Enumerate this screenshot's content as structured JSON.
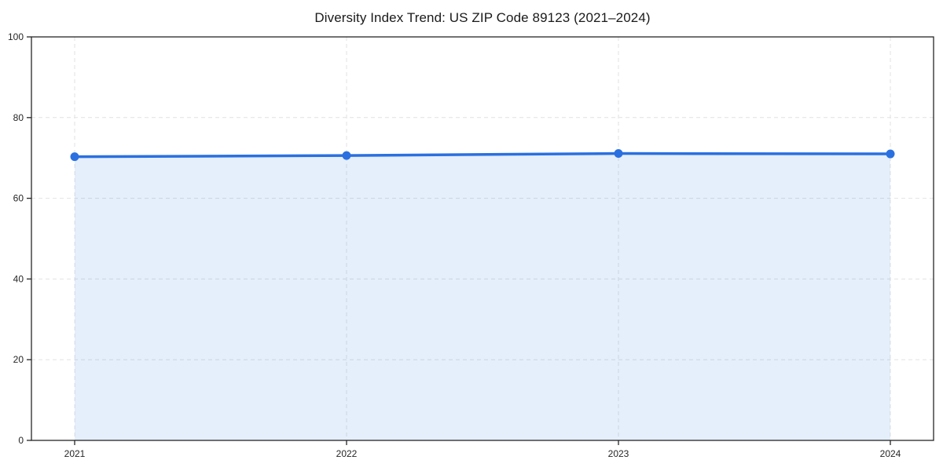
{
  "chart_data": {
    "type": "area",
    "title": "Diversity Index Trend: US ZIP Code 89123 (2021–2024)",
    "categories": [
      "2021",
      "2022",
      "2023",
      "2024"
    ],
    "series": [
      {
        "name": "Diversity Index",
        "values": [
          70.3,
          70.6,
          71.1,
          71.0
        ]
      }
    ],
    "xlabel": "",
    "ylabel": "",
    "ylim": [
      0,
      100
    ],
    "yticks": [
      0,
      20,
      40,
      60,
      80,
      100
    ],
    "grid": true,
    "grid_style": "dashed",
    "legend": false,
    "colors": {
      "line": "#2a70e0",
      "marker": "#2a70e0",
      "fill": "rgba(42, 112, 224, 0.12)",
      "grid": "#e2e2e2",
      "axis": "#262626",
      "text": "#262626"
    }
  }
}
